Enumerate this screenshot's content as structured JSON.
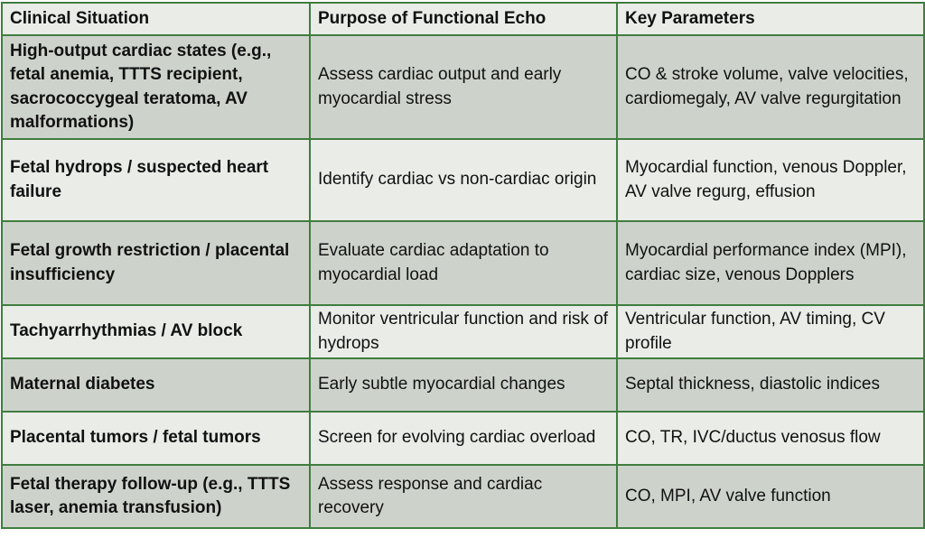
{
  "headers": [
    "Clinical Situation",
    "Purpose of Functional Echo",
    "Key Parameters"
  ],
  "rows": [
    [
      "High-output cardiac states (e.g., fetal anemia, TTTS recipient, sacrococcygeal teratoma, AV malformations)",
      "Assess cardiac output and early myocardial stress",
      "CO & stroke volume, valve velocities, cardiomegaly, AV valve regurgitation"
    ],
    [
      "Fetal hydrops / suspected heart failure",
      "Identify cardiac vs non-cardiac origin",
      "Myocardial function, venous Doppler, AV valve regurg, effusion"
    ],
    [
      "Fetal growth restriction / placental insufficiency",
      "Evaluate cardiac adaptation to myocardial load",
      "Myocardial performance index (MPI), cardiac size, venous Dopplers"
    ],
    [
      "Tachyarrhythmias / AV block",
      "Monitor ventricular function and risk of hydrops",
      "Ventricular function, AV timing, CV profile"
    ],
    [
      "Maternal diabetes",
      "Early subtle myocardial changes",
      "Septal thickness, diastolic indices"
    ],
    [
      "Placental tumors / fetal tumors",
      "Screen for evolving cardiac overload",
      "CO, TR, IVC/ductus venosus flow"
    ],
    [
      "Fetal therapy follow-up (e.g., TTTS laser, anemia transfusion)",
      "Assess response and cardiac recovery",
      "CO, MPI, AV valve function"
    ]
  ]
}
